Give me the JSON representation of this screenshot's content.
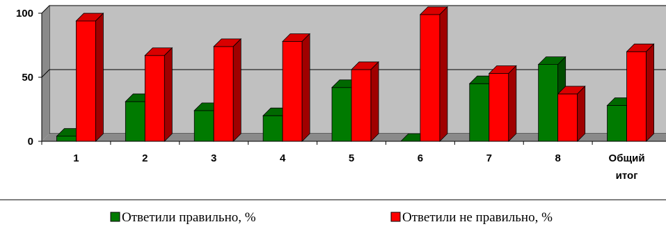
{
  "chart_data": {
    "type": "bar",
    "style": "3d-clustered-column",
    "categories": [
      "1",
      "2",
      "3",
      "4",
      "5",
      "6",
      "7",
      "8",
      [
        "Общий",
        "итог"
      ]
    ],
    "series": [
      {
        "name": "Ответили правильно, %",
        "color": "#007a00",
        "dark_color": "#004d00",
        "values": [
          4,
          31,
          24,
          20,
          42,
          0,
          45,
          60,
          28
        ]
      },
      {
        "name": "Ответили не правильно, %",
        "color": "#ff0000",
        "dark_color": "#a00000",
        "values": [
          94,
          67,
          74,
          78,
          56,
          99,
          53,
          37,
          70
        ]
      }
    ],
    "ylim": [
      0,
      100
    ],
    "yticks": [
      "0",
      "50",
      "100"
    ],
    "gridlines": true,
    "plot_background": "#c0c0c0",
    "legend_position": "bottom"
  }
}
